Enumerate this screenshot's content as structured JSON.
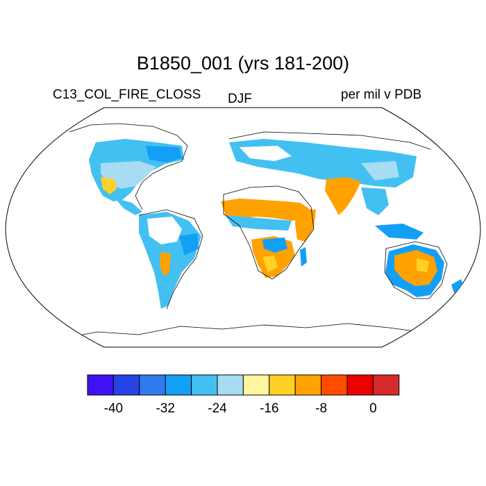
{
  "title": "B1850_001 (yrs 181-200)",
  "variable_label": "C13_COL_FIRE_CLOSS",
  "season_label": "DJF",
  "units_label": "per mil v PDB",
  "colorbar": {
    "colors": [
      "#3f12f5",
      "#2644e6",
      "#2f7bed",
      "#139ff6",
      "#43c0f2",
      "#a8dcf2",
      "#fff5a0",
      "#ffd126",
      "#ffa200",
      "#ff4c00",
      "#eb0000",
      "#d42a2a"
    ],
    "tick_labels": [
      "-40",
      "-32",
      "-24",
      "-16",
      "-8",
      "0"
    ]
  },
  "legend_colors": {
    "ocean": "#ffffff",
    "coast": "#000000"
  }
}
